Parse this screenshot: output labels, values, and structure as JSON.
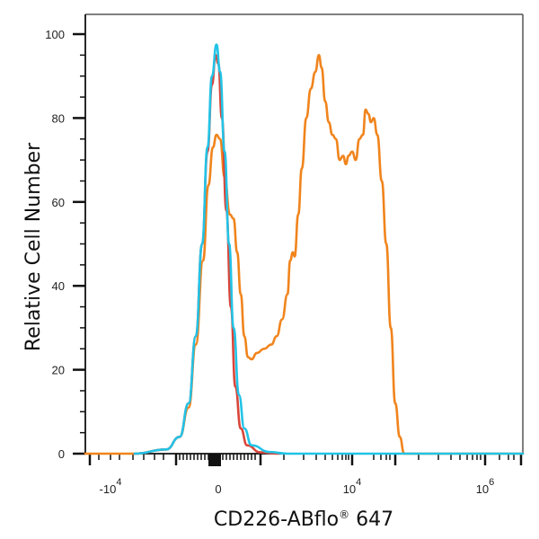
{
  "chart_data": {
    "type": "line",
    "subtype": "flow-cytometry-histogram-overlay",
    "title": "",
    "xlabel": "CD226-ABflo® 647",
    "xlabel_parts": {
      "main": "CD226-ABflo",
      "superscript": "®",
      "suffix": " 647"
    },
    "ylabel": "Relative Cell Number",
    "x_scale": "biexponential",
    "x_tick_labels": [
      {
        "base": "-10",
        "exp": "4",
        "pos": 123
      },
      {
        "base": "0",
        "exp": "",
        "pos": 243
      },
      {
        "base": "10",
        "exp": "4",
        "pos": 392
      },
      {
        "base": "10",
        "exp": "6",
        "pos": 540
      }
    ],
    "y_ticks": [
      0,
      20,
      40,
      60,
      80,
      100
    ],
    "ylim": [
      0,
      100
    ],
    "grid": false,
    "legend": null,
    "series": [
      {
        "name": "red",
        "color": "#d9453a",
        "points": [
          [
            150,
            0
          ],
          [
            185,
            1
          ],
          [
            200,
            4
          ],
          [
            210,
            12
          ],
          [
            218,
            28
          ],
          [
            225,
            50
          ],
          [
            231,
            72
          ],
          [
            236,
            88
          ],
          [
            240,
            95
          ],
          [
            243,
            93
          ],
          [
            247,
            80
          ],
          [
            252,
            58
          ],
          [
            257,
            35
          ],
          [
            262,
            16
          ],
          [
            268,
            6
          ],
          [
            275,
            2
          ],
          [
            290,
            0.3
          ],
          [
            310,
            0
          ]
        ]
      },
      {
        "name": "cyan",
        "color": "#22c3e6",
        "points": [
          [
            150,
            0
          ],
          [
            185,
            1
          ],
          [
            200,
            4
          ],
          [
            210,
            12
          ],
          [
            218,
            28
          ],
          [
            225,
            50
          ],
          [
            231,
            73
          ],
          [
            236,
            90
          ],
          [
            241,
            97.5
          ],
          [
            245,
            91
          ],
          [
            250,
            72
          ],
          [
            255,
            50
          ],
          [
            260,
            30
          ],
          [
            266,
            14
          ],
          [
            272,
            6
          ],
          [
            280,
            2
          ],
          [
            300,
            0.4
          ],
          [
            320,
            0
          ],
          [
            450,
            0
          ],
          [
            582,
            0
          ]
        ]
      },
      {
        "name": "orange",
        "color": "#f0841c",
        "points": [
          [
            95,
            0
          ],
          [
            150,
            0
          ],
          [
            185,
            1
          ],
          [
            200,
            4
          ],
          [
            210,
            11
          ],
          [
            218,
            26
          ],
          [
            226,
            46
          ],
          [
            232,
            64
          ],
          [
            237,
            73
          ],
          [
            241,
            76
          ],
          [
            245,
            75
          ],
          [
            250,
            66
          ],
          [
            256,
            57
          ],
          [
            260,
            56
          ],
          [
            264,
            48
          ],
          [
            268,
            38
          ],
          [
            272,
            28
          ],
          [
            276,
            23
          ],
          [
            280,
            22.5
          ],
          [
            286,
            24
          ],
          [
            294,
            25
          ],
          [
            302,
            26
          ],
          [
            308,
            28
          ],
          [
            314,
            32
          ],
          [
            320,
            38
          ],
          [
            323,
            46
          ],
          [
            326,
            48
          ],
          [
            328,
            47
          ],
          [
            332,
            57
          ],
          [
            336,
            68
          ],
          [
            341,
            80
          ],
          [
            346,
            87
          ],
          [
            351,
            91
          ],
          [
            355,
            95
          ],
          [
            358,
            92
          ],
          [
            362,
            84
          ],
          [
            366,
            79
          ],
          [
            370,
            76
          ],
          [
            374,
            75
          ],
          [
            378,
            70
          ],
          [
            382,
            71
          ],
          [
            385,
            69
          ],
          [
            388,
            71
          ],
          [
            392,
            72
          ],
          [
            396,
            70
          ],
          [
            400,
            75
          ],
          [
            404,
            76
          ],
          [
            407,
            82
          ],
          [
            410,
            81
          ],
          [
            413,
            79
          ],
          [
            416,
            80
          ],
          [
            420,
            76
          ],
          [
            425,
            65
          ],
          [
            430,
            50
          ],
          [
            435,
            30
          ],
          [
            440,
            12
          ],
          [
            445,
            4
          ],
          [
            450,
            0
          ],
          [
            582,
            0
          ]
        ]
      }
    ],
    "peaks": {
      "red_max": 95,
      "cyan_max": 97.5,
      "orange_low_peak": 76,
      "orange_high_peak": 95,
      "orange_second_high_peak": 82
    }
  }
}
